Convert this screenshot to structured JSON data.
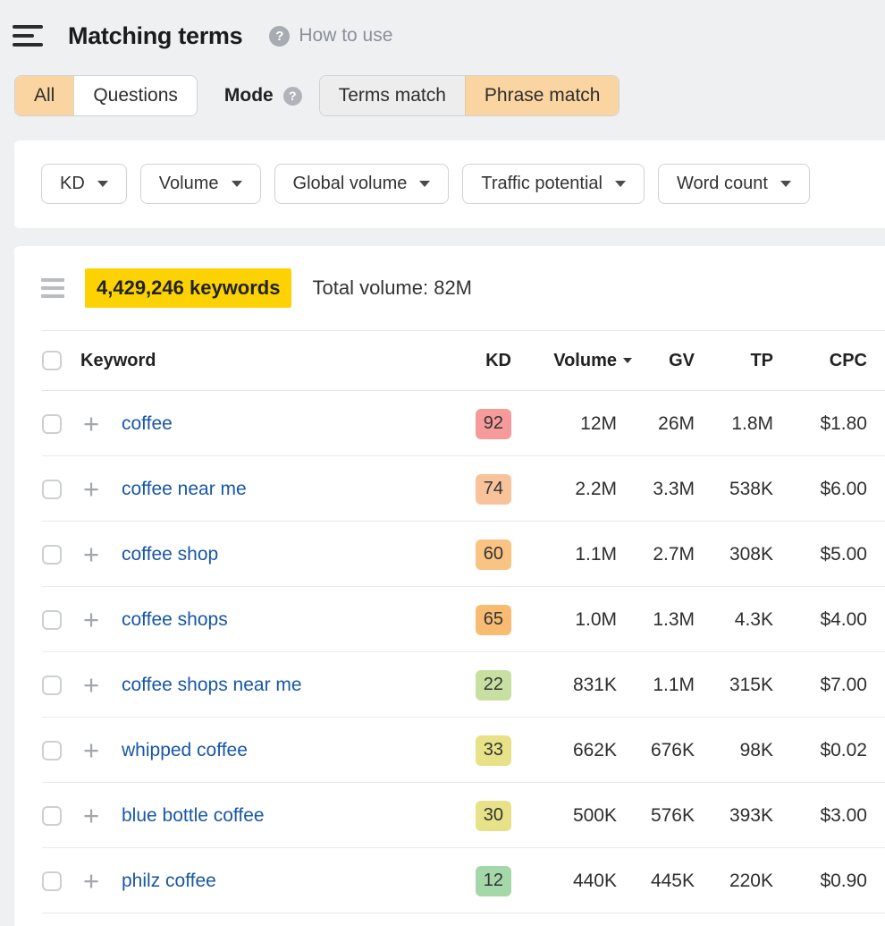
{
  "colors": {
    "page_bg": "#eef0f1",
    "card_bg": "#ffffff",
    "selected_orange": "#fbd5a1",
    "segment_gray": "#ededee",
    "highlight_yellow": "#fcd203",
    "link_blue": "#1757a6",
    "border": "#cfd1d4"
  },
  "header": {
    "title": "Matching terms",
    "help_label": "How to use",
    "tabs": [
      {
        "label": "All",
        "selected": true
      },
      {
        "label": "Questions",
        "selected": false
      }
    ],
    "mode_label": "Mode",
    "mode_options": [
      {
        "label": "Terms match",
        "selected": false
      },
      {
        "label": "Phrase match",
        "selected": true
      }
    ]
  },
  "filters": {
    "buttons": [
      "KD",
      "Volume",
      "Global volume",
      "Traffic potential",
      "Word count"
    ]
  },
  "results": {
    "count_text": "4,429,246 keywords",
    "total_volume_text": "Total volume: 82M"
  },
  "table": {
    "columns": [
      "Keyword",
      "KD",
      "Volume",
      "GV",
      "TP",
      "CPC"
    ],
    "rows": [
      {
        "keyword": "coffee",
        "kd": "92",
        "kd_color": "#f59b9b",
        "volume": "12M",
        "gv": "26M",
        "tp": "1.8M",
        "cpc": "$1.80"
      },
      {
        "keyword": "coffee near me",
        "kd": "74",
        "kd_color": "#f8c39a",
        "volume": "2.2M",
        "gv": "3.3M",
        "tp": "538K",
        "cpc": "$6.00"
      },
      {
        "keyword": "coffee shop",
        "kd": "60",
        "kd_color": "#f9c383",
        "volume": "1.1M",
        "gv": "2.7M",
        "tp": "308K",
        "cpc": "$5.00"
      },
      {
        "keyword": "coffee shops",
        "kd": "65",
        "kd_color": "#f7bc72",
        "volume": "1.0M",
        "gv": "1.3M",
        "tp": "4.3K",
        "cpc": "$4.00"
      },
      {
        "keyword": "coffee shops near me",
        "kd": "22",
        "kd_color": "#c7e0a2",
        "volume": "831K",
        "gv": "1.1M",
        "tp": "315K",
        "cpc": "$7.00"
      },
      {
        "keyword": "whipped coffee",
        "kd": "33",
        "kd_color": "#e7e287",
        "volume": "662K",
        "gv": "676K",
        "tp": "98K",
        "cpc": "$0.02"
      },
      {
        "keyword": "blue bottle coffee",
        "kd": "30",
        "kd_color": "#e7e287",
        "volume": "500K",
        "gv": "576K",
        "tp": "393K",
        "cpc": "$3.00"
      },
      {
        "keyword": "philz coffee",
        "kd": "12",
        "kd_color": "#a5d8a8",
        "volume": "440K",
        "gv": "445K",
        "tp": "220K",
        "cpc": "$0.90"
      }
    ]
  }
}
